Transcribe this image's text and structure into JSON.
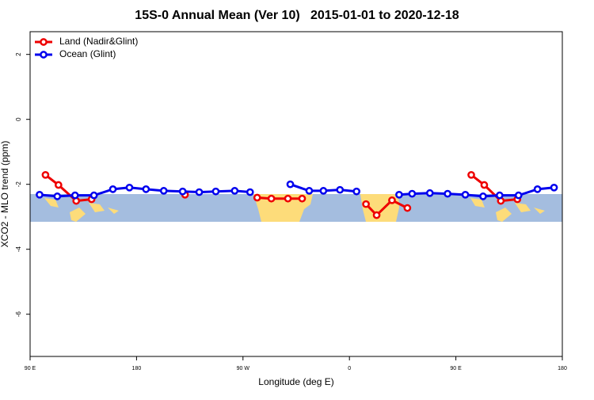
{
  "chart_data": {
    "type": "line",
    "title": "15S-0 Annual Mean (Ver 10)   2015-01-01 to 2020-12-18",
    "x_label": "Longitude (deg E)",
    "y_label": "XCO2 - MLO trend (ppm)",
    "xlim": [
      90,
      540
    ],
    "ylim": [
      -7.3,
      2.7
    ],
    "xticks": [
      {
        "value": 90,
        "label": "90 E"
      },
      180,
      {
        "value": 270,
        "label": "90 W"
      },
      {
        "value": 360,
        "label": "0"
      },
      {
        "value": 450,
        "label": "90 E"
      },
      {
        "value": 540,
        "label": "180"
      }
    ],
    "yticks": [
      2,
      0,
      -2,
      -4,
      -6
    ],
    "legend": "top-left",
    "series": [
      {
        "name": "Land (Nadir&Glint)",
        "color": "#ee0000",
        "x": [
          103,
          114,
          129,
          142,
          null,
          221,
          null,
          282,
          294,
          308,
          320,
          null,
          374,
          383,
          396,
          409,
          null,
          463,
          474,
          488,
          502
        ],
        "values": [
          -1.71,
          -2.02,
          -2.51,
          -2.46,
          null,
          -2.32,
          null,
          -2.41,
          -2.44,
          -2.44,
          -2.44,
          null,
          -2.61,
          -2.95,
          -2.49,
          -2.73,
          null,
          -1.71,
          -2.02,
          -2.51,
          -2.46
        ]
      },
      {
        "name": "Ocean (Glint)",
        "color": "#0000ee",
        "x": [
          98,
          113,
          128,
          144,
          160,
          174,
          188,
          203,
          219,
          233,
          247,
          263,
          276,
          null,
          310,
          326,
          338,
          352,
          366,
          null,
          402,
          413,
          428,
          443,
          458,
          473,
          487,
          503,
          519,
          533
        ],
        "values": [
          -2.32,
          -2.37,
          -2.34,
          -2.34,
          -2.15,
          -2.1,
          -2.15,
          -2.2,
          -2.22,
          -2.24,
          -2.22,
          -2.2,
          -2.24,
          null,
          -2.0,
          -2.2,
          -2.2,
          -2.17,
          -2.22,
          null,
          -2.32,
          -2.29,
          -2.27,
          -2.29,
          -2.32,
          -2.37,
          -2.34,
          -2.34,
          -2.15,
          -2.1
        ]
      }
    ]
  }
}
